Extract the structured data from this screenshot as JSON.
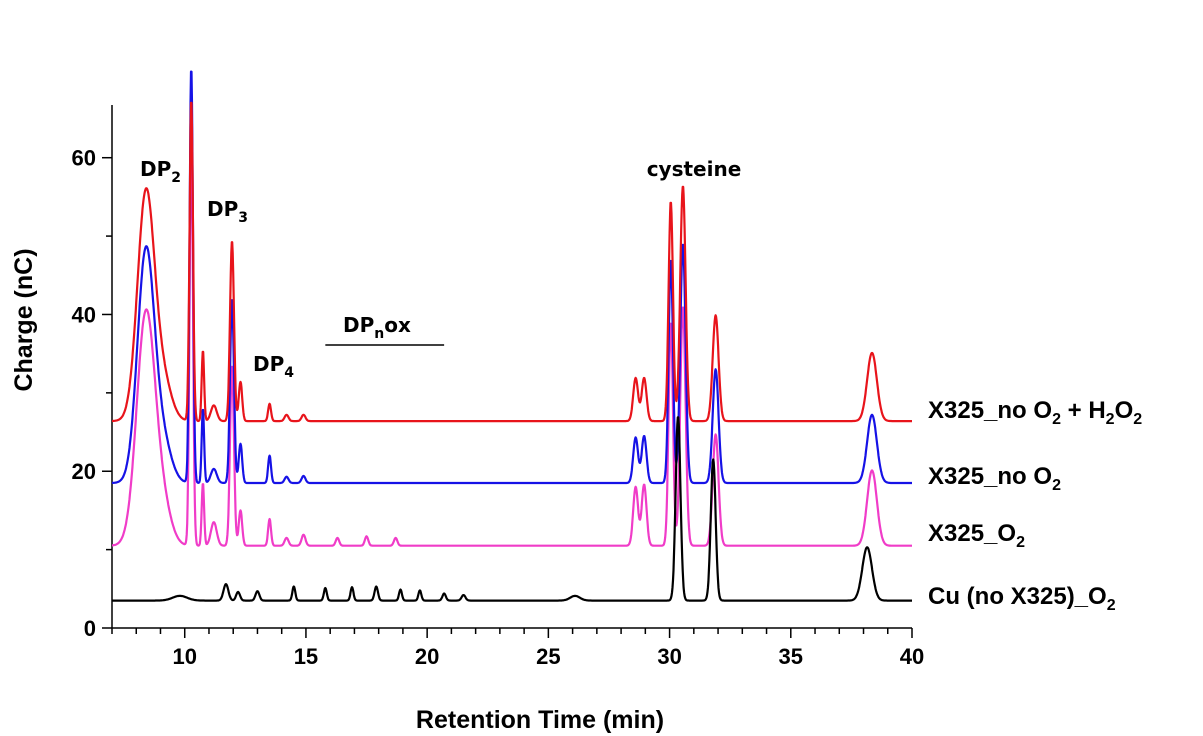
{
  "chart_data": {
    "type": "line",
    "title": "",
    "xlabel": "Retention Time (min)",
    "ylabel": "Charge (nC)",
    "xlim": [
      7,
      40
    ],
    "ylim": [
      0,
      68
    ],
    "x_ticks": [
      10,
      15,
      20,
      25,
      30,
      35,
      40
    ],
    "y_ticks": [
      0,
      20,
      40,
      60
    ],
    "grid": false,
    "legend": "right-of-traces",
    "series": [
      {
        "name": "X325_no O2 + H2O2",
        "label_parts": {
          "a": "X325_no O",
          "b": "2",
          "c": " + H",
          "d": "2",
          "e": "O",
          "f": "2"
        },
        "color": "#e8141b",
        "baseline": 26.4,
        "peaks": [
          [
            8.4,
            29,
            0.35
          ],
          [
            9.1,
            5,
            0.35
          ],
          [
            10.27,
            41,
            0.07
          ],
          [
            10.75,
            9,
            0.05
          ],
          [
            11.2,
            2,
            0.12
          ],
          [
            11.95,
            23,
            0.08
          ],
          [
            12.3,
            5,
            0.07
          ],
          [
            13.5,
            2.2,
            0.06
          ],
          [
            14.2,
            0.8,
            0.08
          ],
          [
            14.9,
            0.8,
            0.08
          ],
          [
            28.6,
            5.5,
            0.1
          ],
          [
            28.95,
            5.5,
            0.1
          ],
          [
            30.05,
            28,
            0.09
          ],
          [
            30.55,
            30,
            0.11
          ],
          [
            31.9,
            13.5,
            0.12
          ],
          [
            38.35,
            8.7,
            0.2
          ]
        ]
      },
      {
        "name": "X325_no O2",
        "label_parts": {
          "a": "X325_no O",
          "b": "2"
        },
        "color": "#1612e6",
        "baseline": 18.5,
        "peaks": [
          [
            8.4,
            29.5,
            0.35
          ],
          [
            9.1,
            5,
            0.35
          ],
          [
            10.27,
            53,
            0.07
          ],
          [
            10.75,
            9.5,
            0.05
          ],
          [
            11.2,
            1.8,
            0.12
          ],
          [
            11.95,
            23.5,
            0.08
          ],
          [
            12.3,
            5,
            0.07
          ],
          [
            13.5,
            3.5,
            0.06
          ],
          [
            14.2,
            0.8,
            0.08
          ],
          [
            14.9,
            0.9,
            0.08
          ],
          [
            28.6,
            5.8,
            0.1
          ],
          [
            28.95,
            6,
            0.1
          ],
          [
            30.05,
            28.5,
            0.09
          ],
          [
            30.55,
            30.5,
            0.11
          ],
          [
            31.9,
            14.5,
            0.12
          ],
          [
            38.35,
            8.7,
            0.2
          ]
        ]
      },
      {
        "name": "X325_O2",
        "label_parts": {
          "a": "X325_O",
          "b": "2"
        },
        "color": "#f03cc8",
        "baseline": 10.5,
        "peaks": [
          [
            8.4,
            29.5,
            0.38
          ],
          [
            9.1,
            4.5,
            0.35
          ],
          [
            10.27,
            52,
            0.07
          ],
          [
            10.75,
            8,
            0.05
          ],
          [
            11.2,
            3,
            0.12
          ],
          [
            11.95,
            23,
            0.08
          ],
          [
            12.3,
            4.5,
            0.07
          ],
          [
            13.5,
            3.4,
            0.06
          ],
          [
            14.2,
            1,
            0.08
          ],
          [
            14.9,
            1.4,
            0.08
          ],
          [
            16.3,
            1,
            0.07
          ],
          [
            17.5,
            1.2,
            0.07
          ],
          [
            18.7,
            1,
            0.07
          ],
          [
            28.6,
            7.5,
            0.1
          ],
          [
            28.95,
            7.8,
            0.1
          ],
          [
            30.05,
            28.5,
            0.09
          ],
          [
            30.55,
            30.5,
            0.11
          ],
          [
            31.9,
            14.2,
            0.12
          ],
          [
            38.35,
            9.6,
            0.2
          ]
        ]
      },
      {
        "name": "Cu (no X325)_O2",
        "label_parts": {
          "a": "Cu (no X325)_O",
          "b": "2"
        },
        "color": "#000000",
        "baseline": 3.5,
        "peaks": [
          [
            9.8,
            0.6,
            0.3
          ],
          [
            11.7,
            2.1,
            0.1
          ],
          [
            12.2,
            1.1,
            0.08
          ],
          [
            13,
            1.2,
            0.08
          ],
          [
            14.5,
            1.8,
            0.06
          ],
          [
            15.8,
            1.6,
            0.06
          ],
          [
            16.9,
            1.7,
            0.06
          ],
          [
            17.9,
            1.8,
            0.07
          ],
          [
            18.9,
            1.4,
            0.06
          ],
          [
            19.7,
            1.3,
            0.06
          ],
          [
            20.7,
            0.9,
            0.07
          ],
          [
            21.5,
            0.7,
            0.08
          ],
          [
            26.1,
            0.6,
            0.2
          ],
          [
            30.35,
            23.5,
            0.1
          ],
          [
            31.8,
            18,
            0.1
          ],
          [
            38.15,
            6.8,
            0.2
          ]
        ]
      }
    ],
    "annotations": {
      "dp2": {
        "t1": "DP",
        "t2": "2"
      },
      "dp3": {
        "t1": "DP",
        "t2": "3"
      },
      "dp4": {
        "t1": "DP",
        "t2": "4"
      },
      "dpnox": {
        "t1": "DP",
        "t2": "n",
        "t3": "ox",
        "x_range": [
          15.8,
          20.7
        ]
      },
      "cysteine": "cysteine"
    }
  }
}
